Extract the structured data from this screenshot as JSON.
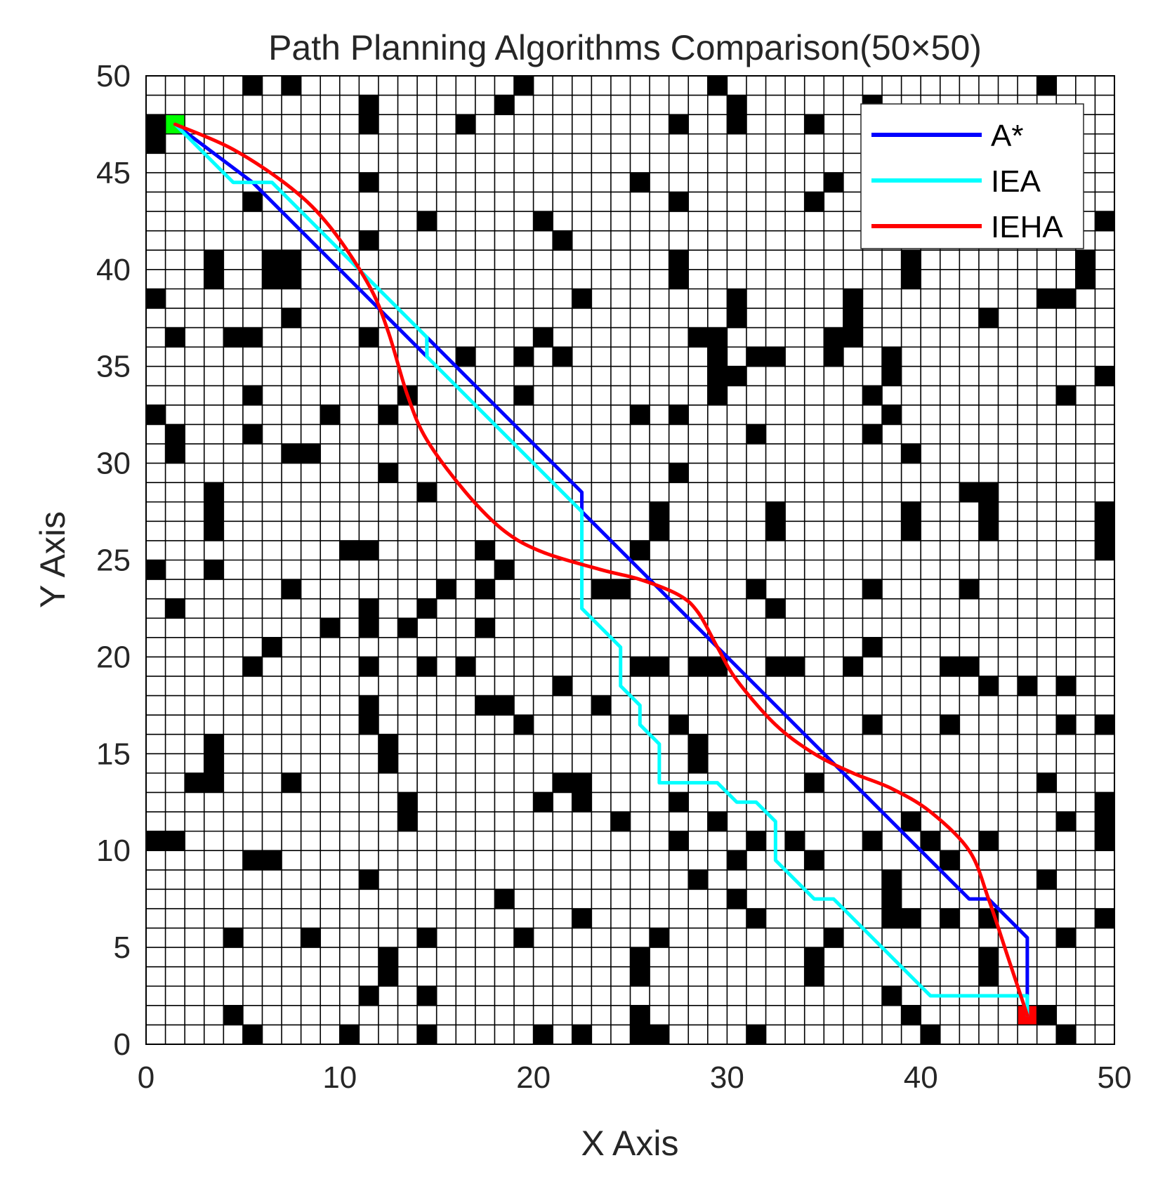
{
  "chart_data": {
    "type": "line",
    "title": "Path Planning Algorithms Comparison(50×50)",
    "xlabel": "X Axis",
    "ylabel": "Y Axis",
    "xlim": [
      0,
      50
    ],
    "ylim": [
      0,
      50
    ],
    "xticks": [
      "0",
      "10",
      "20",
      "30",
      "40",
      "50"
    ],
    "yticks": [
      "0",
      "5",
      "10",
      "15",
      "20",
      "25",
      "30",
      "35",
      "40",
      "45",
      "50"
    ],
    "grid": true,
    "grid_cell_size": 1,
    "legend_position": "top-right",
    "colors": {
      "obstacle": "#000000",
      "start": "#00ff00",
      "goal": "#ff0000",
      "grid_line": "#000000"
    },
    "start_cell": [
      1,
      47
    ],
    "goal_cell": [
      45,
      1
    ],
    "obstacles": [
      [
        5,
        49
      ],
      [
        7,
        49
      ],
      [
        19,
        49
      ],
      [
        29,
        49
      ],
      [
        46,
        49
      ],
      [
        11,
        48
      ],
      [
        18,
        48
      ],
      [
        30,
        48
      ],
      [
        37,
        48
      ],
      [
        0,
        47
      ],
      [
        11,
        47
      ],
      [
        16,
        47
      ],
      [
        27,
        47
      ],
      [
        30,
        47
      ],
      [
        34,
        47
      ],
      [
        0,
        46
      ],
      [
        47,
        45
      ],
      [
        11,
        44
      ],
      [
        25,
        44
      ],
      [
        35,
        44
      ],
      [
        5,
        43
      ],
      [
        27,
        43
      ],
      [
        34,
        43
      ],
      [
        14,
        42
      ],
      [
        20,
        42
      ],
      [
        49,
        42
      ],
      [
        11,
        41
      ],
      [
        21,
        41
      ],
      [
        3,
        40
      ],
      [
        6,
        40
      ],
      [
        7,
        40
      ],
      [
        27,
        40
      ],
      [
        39,
        40
      ],
      [
        48,
        40
      ],
      [
        3,
        39
      ],
      [
        6,
        39
      ],
      [
        7,
        39
      ],
      [
        27,
        39
      ],
      [
        39,
        39
      ],
      [
        48,
        39
      ],
      [
        0,
        38
      ],
      [
        22,
        38
      ],
      [
        30,
        38
      ],
      [
        36,
        38
      ],
      [
        46,
        38
      ],
      [
        47,
        38
      ],
      [
        7,
        37
      ],
      [
        30,
        37
      ],
      [
        36,
        37
      ],
      [
        43,
        37
      ],
      [
        1,
        36
      ],
      [
        4,
        36
      ],
      [
        5,
        36
      ],
      [
        11,
        36
      ],
      [
        20,
        36
      ],
      [
        28,
        36
      ],
      [
        29,
        36
      ],
      [
        35,
        36
      ],
      [
        36,
        36
      ],
      [
        16,
        35
      ],
      [
        19,
        35
      ],
      [
        21,
        35
      ],
      [
        29,
        35
      ],
      [
        31,
        35
      ],
      [
        32,
        35
      ],
      [
        35,
        35
      ],
      [
        38,
        35
      ],
      [
        29,
        34
      ],
      [
        30,
        34
      ],
      [
        38,
        34
      ],
      [
        49,
        34
      ],
      [
        5,
        33
      ],
      [
        13,
        33
      ],
      [
        19,
        33
      ],
      [
        29,
        33
      ],
      [
        37,
        33
      ],
      [
        47,
        33
      ],
      [
        0,
        32
      ],
      [
        9,
        32
      ],
      [
        12,
        32
      ],
      [
        25,
        32
      ],
      [
        27,
        32
      ],
      [
        38,
        32
      ],
      [
        1,
        31
      ],
      [
        5,
        31
      ],
      [
        31,
        31
      ],
      [
        37,
        31
      ],
      [
        1,
        30
      ],
      [
        7,
        30
      ],
      [
        8,
        30
      ],
      [
        39,
        30
      ],
      [
        12,
        29
      ],
      [
        27,
        29
      ],
      [
        3,
        28
      ],
      [
        14,
        28
      ],
      [
        42,
        28
      ],
      [
        43,
        28
      ],
      [
        3,
        27
      ],
      [
        26,
        27
      ],
      [
        32,
        27
      ],
      [
        39,
        27
      ],
      [
        43,
        27
      ],
      [
        49,
        27
      ],
      [
        3,
        26
      ],
      [
        26,
        26
      ],
      [
        32,
        26
      ],
      [
        39,
        26
      ],
      [
        43,
        26
      ],
      [
        49,
        26
      ],
      [
        10,
        25
      ],
      [
        11,
        25
      ],
      [
        17,
        25
      ],
      [
        25,
        25
      ],
      [
        49,
        25
      ],
      [
        0,
        24
      ],
      [
        3,
        24
      ],
      [
        18,
        24
      ],
      [
        7,
        23
      ],
      [
        15,
        23
      ],
      [
        17,
        23
      ],
      [
        23,
        23
      ],
      [
        24,
        23
      ],
      [
        31,
        23
      ],
      [
        37,
        23
      ],
      [
        42,
        23
      ],
      [
        1,
        22
      ],
      [
        11,
        22
      ],
      [
        14,
        22
      ],
      [
        32,
        22
      ],
      [
        9,
        21
      ],
      [
        11,
        21
      ],
      [
        13,
        21
      ],
      [
        17,
        21
      ],
      [
        6,
        20
      ],
      [
        37,
        20
      ],
      [
        5,
        19
      ],
      [
        11,
        19
      ],
      [
        14,
        19
      ],
      [
        16,
        19
      ],
      [
        25,
        19
      ],
      [
        26,
        19
      ],
      [
        28,
        19
      ],
      [
        29,
        19
      ],
      [
        32,
        19
      ],
      [
        33,
        19
      ],
      [
        36,
        19
      ],
      [
        41,
        19
      ],
      [
        42,
        19
      ],
      [
        21,
        18
      ],
      [
        43,
        18
      ],
      [
        45,
        18
      ],
      [
        47,
        18
      ],
      [
        11,
        17
      ],
      [
        17,
        17
      ],
      [
        18,
        17
      ],
      [
        23,
        17
      ],
      [
        11,
        16
      ],
      [
        19,
        16
      ],
      [
        27,
        16
      ],
      [
        37,
        16
      ],
      [
        41,
        16
      ],
      [
        47,
        16
      ],
      [
        49,
        16
      ],
      [
        3,
        15
      ],
      [
        12,
        15
      ],
      [
        28,
        15
      ],
      [
        3,
        14
      ],
      [
        12,
        14
      ],
      [
        28,
        14
      ],
      [
        2,
        13
      ],
      [
        3,
        13
      ],
      [
        7,
        13
      ],
      [
        21,
        13
      ],
      [
        22,
        13
      ],
      [
        34,
        13
      ],
      [
        46,
        13
      ],
      [
        13,
        12
      ],
      [
        20,
        12
      ],
      [
        22,
        12
      ],
      [
        27,
        12
      ],
      [
        49,
        12
      ],
      [
        13,
        11
      ],
      [
        24,
        11
      ],
      [
        29,
        11
      ],
      [
        39,
        11
      ],
      [
        47,
        11
      ],
      [
        49,
        11
      ],
      [
        0,
        10
      ],
      [
        1,
        10
      ],
      [
        27,
        10
      ],
      [
        31,
        10
      ],
      [
        33,
        10
      ],
      [
        37,
        10
      ],
      [
        40,
        10
      ],
      [
        43,
        10
      ],
      [
        49,
        10
      ],
      [
        5,
        9
      ],
      [
        6,
        9
      ],
      [
        30,
        9
      ],
      [
        34,
        9
      ],
      [
        41,
        9
      ],
      [
        11,
        8
      ],
      [
        28,
        8
      ],
      [
        38,
        8
      ],
      [
        46,
        8
      ],
      [
        18,
        7
      ],
      [
        30,
        7
      ],
      [
        38,
        7
      ],
      [
        22,
        6
      ],
      [
        31,
        6
      ],
      [
        38,
        6
      ],
      [
        39,
        6
      ],
      [
        41,
        6
      ],
      [
        43,
        6
      ],
      [
        49,
        6
      ],
      [
        4,
        5
      ],
      [
        8,
        5
      ],
      [
        14,
        5
      ],
      [
        19,
        5
      ],
      [
        26,
        5
      ],
      [
        35,
        5
      ],
      [
        47,
        5
      ],
      [
        12,
        4
      ],
      [
        25,
        4
      ],
      [
        34,
        4
      ],
      [
        43,
        4
      ],
      [
        12,
        3
      ],
      [
        25,
        3
      ],
      [
        34,
        3
      ],
      [
        43,
        3
      ],
      [
        11,
        2
      ],
      [
        14,
        2
      ],
      [
        38,
        2
      ],
      [
        4,
        1
      ],
      [
        25,
        1
      ],
      [
        39,
        1
      ],
      [
        46,
        1
      ],
      [
        5,
        0
      ],
      [
        10,
        0
      ],
      [
        14,
        0
      ],
      [
        20,
        0
      ],
      [
        22,
        0
      ],
      [
        25,
        0
      ],
      [
        26,
        0
      ],
      [
        31,
        0
      ],
      [
        40,
        0
      ],
      [
        47,
        0
      ]
    ],
    "series": [
      {
        "name": "A*",
        "color": "#0000ff",
        "x": [
          1.5,
          5.5,
          14.5,
          14.5,
          22.5,
          22.5,
          42.5,
          43.5,
          45.5,
          45.5
        ],
        "y": [
          47.5,
          44.5,
          35.5,
          36.5,
          28.5,
          27.5,
          7.5,
          7.5,
          5.5,
          1.5
        ]
      },
      {
        "name": "IEA",
        "color": "#00ffff",
        "x": [
          1.5,
          4.5,
          6.5,
          14.5,
          14.5,
          22.5,
          22.5,
          22.5,
          24.5,
          24.5,
          25.5,
          25.5,
          26.5,
          26.5,
          29.5,
          30.5,
          31.5,
          32.5,
          32.5,
          34.5,
          35.5,
          40.5,
          45.5,
          45.5
        ],
        "y": [
          47.5,
          44.5,
          44.5,
          36.5,
          35.5,
          27.5,
          22.5,
          22.5,
          20.5,
          18.5,
          17.5,
          16.5,
          15.5,
          13.5,
          13.5,
          12.5,
          12.5,
          11.5,
          9.5,
          7.5,
          7.5,
          2.5,
          2.5,
          1.5
        ]
      },
      {
        "name": "IEHA",
        "color": "#ff0000",
        "x": [
          1.5,
          4.5,
          7.5,
          9.5,
          11.5,
          12.5,
          13.5,
          14.5,
          16.5,
          18.5,
          20.5,
          23.5,
          25.5,
          27.5,
          28.5,
          29.5,
          30.5,
          32.5,
          34.5,
          36.5,
          38.5,
          40.5,
          42.5,
          43.5,
          44.5,
          45.5
        ],
        "y": [
          47.5,
          46.2,
          44.2,
          42.2,
          39.2,
          36.8,
          33.5,
          31.2,
          28.5,
          26.5,
          25.4,
          24.5,
          24.0,
          23.2,
          22.3,
          20.5,
          18.8,
          16.5,
          15.0,
          14.0,
          13.2,
          12.0,
          10.0,
          7.5,
          4.5,
          1.5
        ]
      }
    ]
  }
}
